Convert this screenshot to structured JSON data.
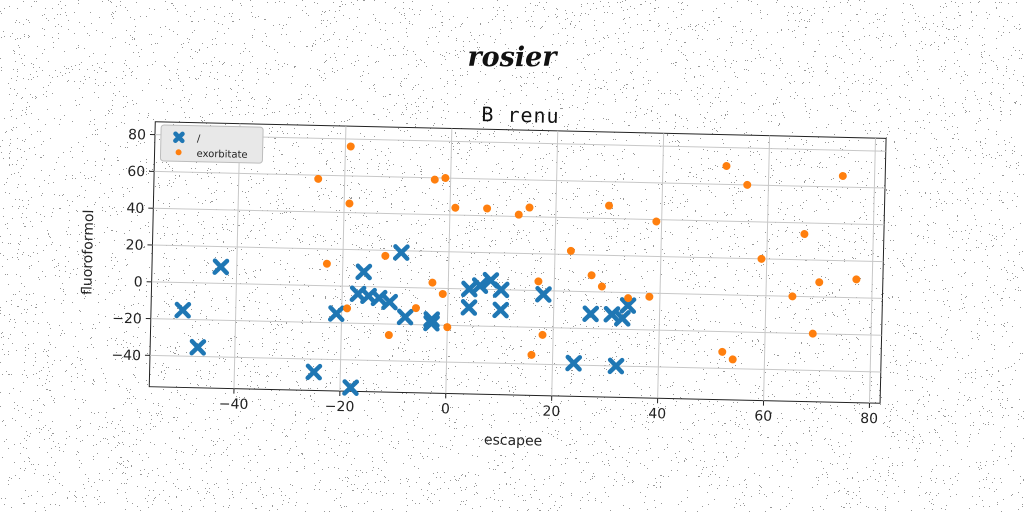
{
  "page": {
    "supertitle": "rosier"
  },
  "chart_data": {
    "type": "scatter",
    "title": "B  renu",
    "xlabel": "escapee",
    "ylabel": "fluoroformol",
    "xlim": [
      -56,
      82
    ],
    "ylim": [
      -57,
      87
    ],
    "xticks": [
      -40,
      -20,
      0,
      20,
      40,
      60,
      80
    ],
    "yticks": [
      -40,
      -20,
      0,
      20,
      40,
      60,
      80
    ],
    "grid": true,
    "legend": "top-left",
    "series": [
      {
        "name": "/",
        "marker": "x",
        "color": "#1f77b4",
        "points": [
          [
            -50,
            -15
          ],
          [
            -47,
            -35
          ],
          [
            -43,
            9
          ],
          [
            -25,
            -47
          ],
          [
            -21,
            -15
          ],
          [
            -18,
            -55
          ],
          [
            -17,
            -4
          ],
          [
            -16,
            8
          ],
          [
            -15,
            -5
          ],
          [
            -13,
            -6
          ],
          [
            -11,
            -8
          ],
          [
            -9,
            19
          ],
          [
            -8,
            -16
          ],
          [
            -3,
            -17
          ],
          [
            -3,
            -19
          ],
          [
            4,
            0
          ],
          [
            4,
            -10
          ],
          [
            6,
            2
          ],
          [
            8,
            5
          ],
          [
            10,
            -11
          ],
          [
            10,
            0
          ],
          [
            18,
            -2
          ],
          [
            24,
            -39
          ],
          [
            27,
            -12
          ],
          [
            31,
            -12
          ],
          [
            32,
            -40
          ],
          [
            33,
            -14
          ],
          [
            34,
            -7
          ]
        ]
      },
      {
        "name": "exorbitate",
        "marker": "o",
        "color": "#ff7f0e",
        "points": [
          [
            -25,
            58
          ],
          [
            -19,
            76
          ],
          [
            -19,
            45
          ],
          [
            -23,
            12
          ],
          [
            -19,
            -12
          ],
          [
            -11,
            -26
          ],
          [
            -12,
            17
          ],
          [
            -6,
            -11
          ],
          [
            -3,
            59
          ],
          [
            -3,
            3
          ],
          [
            -1,
            -3
          ],
          [
            -1,
            60
          ],
          [
            1,
            44
          ],
          [
            0,
            -21
          ],
          [
            7,
            44
          ],
          [
            13,
            41
          ],
          [
            15,
            45
          ],
          [
            16,
            -35
          ],
          [
            18,
            -24
          ],
          [
            17,
            5
          ],
          [
            23,
            22
          ],
          [
            27,
            9
          ],
          [
            29,
            3
          ],
          [
            30,
            47
          ],
          [
            39,
            39
          ],
          [
            38,
            -2
          ],
          [
            34,
            -3
          ],
          [
            52,
            -31
          ],
          [
            52,
            70
          ],
          [
            54,
            -35
          ],
          [
            56,
            60
          ],
          [
            59,
            20
          ],
          [
            65,
            0
          ],
          [
            67,
            34
          ],
          [
            69,
            -20
          ],
          [
            70,
            8
          ],
          [
            74,
            66
          ],
          [
            77,
            10
          ]
        ]
      }
    ]
  }
}
